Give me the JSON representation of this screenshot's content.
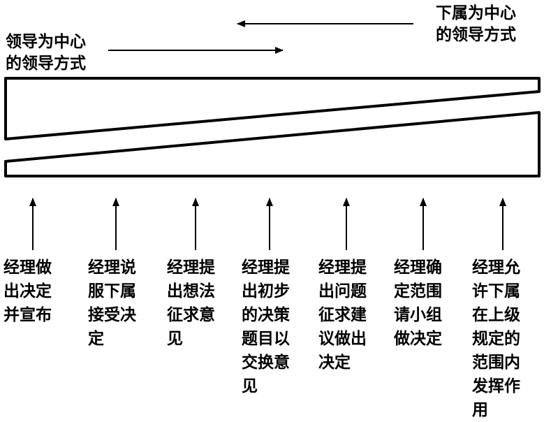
{
  "top_right_label": {
    "line1": "下属为中心",
    "line2": "的领导方式"
  },
  "top_left_label": {
    "line1": "领导为中心",
    "line2": "的领导方式"
  },
  "columns": [
    {
      "lines": [
        "经理做",
        "出决定",
        "并宣布"
      ]
    },
    {
      "lines": [
        "经理说",
        "服下属",
        "接受决",
        "定"
      ]
    },
    {
      "lines": [
        "经理提",
        "出想法",
        "征求意",
        "见"
      ]
    },
    {
      "lines": [
        "经理提",
        "出初步",
        "的决策",
        "题目以",
        "交换意",
        "见"
      ]
    },
    {
      "lines": [
        "经理提",
        "出问题",
        "征求建",
        "议做出",
        "决定"
      ]
    },
    {
      "lines": [
        "经理确",
        "定范围",
        "请小组",
        "做决定"
      ]
    },
    {
      "lines": [
        "经理允",
        "许下属",
        "在上级",
        "规定的",
        "范围内",
        "发挥作",
        "用"
      ]
    }
  ]
}
